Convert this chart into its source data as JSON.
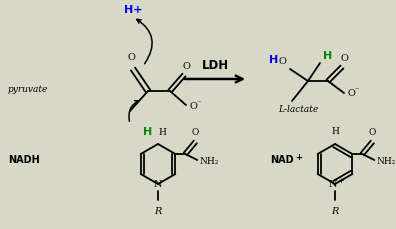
{
  "bg_color": "#d8d8c8",
  "text_color": "#000000",
  "blue_color": "#0000ee",
  "green_color": "#008800",
  "label_pyruvate": "pyruvate",
  "label_nadh": "NADH",
  "label_llactate": "L-lactate",
  "label_nadplus": "NAD+",
  "label_ldh": "LDH",
  "hplus": "H+",
  "figsize": [
    3.96,
    2.3
  ],
  "dpi": 100
}
